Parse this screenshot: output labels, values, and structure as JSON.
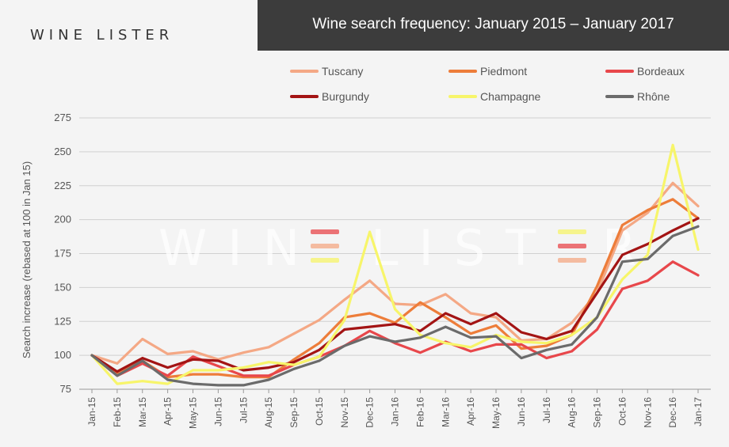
{
  "logo_text": "WINE LISTER",
  "watermark_text": "WINE LISTER",
  "chart_data": {
    "type": "line",
    "title": "Wine search frequency: January 2015 – January 2017",
    "ylabel": "Search increase (rebased at 100 in Jan 15)",
    "xlabel": "",
    "ylim": [
      75,
      275
    ],
    "yticks": [
      75,
      100,
      125,
      150,
      175,
      200,
      225,
      250,
      275
    ],
    "grid": "horizontal",
    "legend_position": "top",
    "categories": [
      "Jan-15",
      "Feb-15",
      "Mar-15",
      "Apr-15",
      "May-15",
      "Jun-15",
      "Jul-15",
      "Aug-15",
      "Sep-15",
      "Oct-15",
      "Nov-15",
      "Dec-15",
      "Jan-16",
      "Feb-16",
      "Mar-16",
      "Apr-16",
      "May-16",
      "Jun-16",
      "Jul-16",
      "Aug-16",
      "Sep-16",
      "Oct-16",
      "Nov-16",
      "Dec-16",
      "Jan-17"
    ],
    "series": [
      {
        "name": "Tuscany",
        "color": "#f4a885",
        "values": [
          100,
          94,
          112,
          101,
          103,
          97,
          102,
          106,
          116,
          126,
          141,
          155,
          138,
          137,
          145,
          131,
          128,
          111,
          112,
          124,
          146,
          192,
          205,
          227,
          210
        ]
      },
      {
        "name": "Piedmont",
        "color": "#ed7d3a",
        "values": [
          100,
          86,
          96,
          84,
          86,
          86,
          84,
          84,
          97,
          109,
          128,
          131,
          124,
          139,
          128,
          116,
          122,
          105,
          107,
          115,
          151,
          196,
          207,
          215,
          201
        ]
      },
      {
        "name": "Bordeaux",
        "color": "#e8474b",
        "values": [
          100,
          85,
          94,
          85,
          99,
          92,
          85,
          85,
          93,
          99,
          107,
          118,
          109,
          102,
          110,
          103,
          108,
          108,
          98,
          103,
          119,
          149,
          155,
          169,
          159
        ]
      },
      {
        "name": "Burgundy",
        "color": "#a31414",
        "values": [
          100,
          88,
          98,
          91,
          97,
          96,
          89,
          91,
          95,
          104,
          119,
          121,
          123,
          118,
          131,
          123,
          131,
          117,
          112,
          118,
          146,
          174,
          182,
          192,
          201
        ]
      },
      {
        "name": "Champagne",
        "color": "#f7f56a",
        "values": [
          100,
          79,
          81,
          79,
          89,
          89,
          91,
          95,
          93,
          99,
          126,
          191,
          134,
          115,
          109,
          106,
          115,
          110,
          109,
          115,
          128,
          156,
          174,
          255,
          178
        ]
      },
      {
        "name": "Rhône",
        "color": "#6b6b6b",
        "values": [
          100,
          85,
          96,
          82,
          79,
          78,
          78,
          82,
          90,
          96,
          107,
          114,
          110,
          113,
          121,
          113,
          114,
          98,
          104,
          108,
          128,
          169,
          171,
          188,
          195
        ]
      }
    ]
  }
}
